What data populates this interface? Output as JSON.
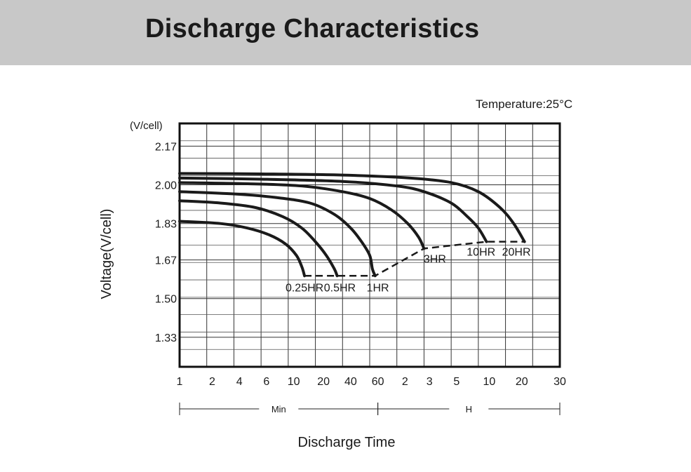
{
  "header": {
    "title": "Discharge Characteristics"
  },
  "chart_data": {
    "type": "line",
    "title": "Discharge Characteristics",
    "temperature_label": "Temperature:25°C",
    "ylabel": "Voltage(V/cell)",
    "y_unit_label": "(V/cell)",
    "xlabel": "Discharge Time",
    "ylim": [
      1.2,
      2.27
    ],
    "yticks": [
      2.17,
      2.0,
      1.83,
      1.67,
      1.5,
      1.33
    ],
    "ytick_labels": [
      "2.17",
      "2.00",
      "1.83",
      "1.67",
      "1.50",
      "1.33"
    ],
    "xlim": [
      0,
      14
    ],
    "xticks": [
      0,
      1,
      2,
      3,
      4,
      5,
      6,
      7,
      8,
      9,
      10,
      11,
      12,
      13,
      14
    ],
    "xtick_labels": [
      "1",
      "2",
      "4",
      "6",
      "10",
      "20",
      "40",
      "60",
      "2",
      "3",
      "5",
      "10",
      "20",
      "30"
    ],
    "xtick_positions": [
      0,
      1.2,
      2.2,
      3.2,
      4.2,
      5.3,
      6.3,
      7.3,
      8.3,
      9.2,
      10.2,
      11.4,
      12.6,
      14
    ],
    "x_ranges": [
      {
        "label": "Min",
        "from": 0,
        "to": 7.3
      },
      {
        "label": "H",
        "from": 7.3,
        "to": 14
      }
    ],
    "series": [
      {
        "name": "0.25HR",
        "points": [
          [
            0,
            1.84
          ],
          [
            1.5,
            1.83
          ],
          [
            2.5,
            1.81
          ],
          [
            3.3,
            1.78
          ],
          [
            3.9,
            1.74
          ],
          [
            4.3,
            1.69
          ],
          [
            4.5,
            1.64
          ],
          [
            4.6,
            1.6
          ]
        ]
      },
      {
        "name": "0.5HR",
        "points": [
          [
            0,
            1.93
          ],
          [
            1.5,
            1.92
          ],
          [
            2.8,
            1.9
          ],
          [
            3.8,
            1.86
          ],
          [
            4.5,
            1.81
          ],
          [
            5.0,
            1.75
          ],
          [
            5.4,
            1.69
          ],
          [
            5.7,
            1.63
          ],
          [
            5.8,
            1.6
          ]
        ]
      },
      {
        "name": "1HR",
        "points": [
          [
            0,
            1.97
          ],
          [
            2,
            1.96
          ],
          [
            3.5,
            1.945
          ],
          [
            4.8,
            1.92
          ],
          [
            5.7,
            1.87
          ],
          [
            6.3,
            1.81
          ],
          [
            6.7,
            1.75
          ],
          [
            7.0,
            1.69
          ],
          [
            7.1,
            1.63
          ],
          [
            7.2,
            1.6
          ]
        ]
      },
      {
        "name": "3HR",
        "points": [
          [
            0,
            2.01
          ],
          [
            2.5,
            2.005
          ],
          [
            4.5,
            1.995
          ],
          [
            6,
            1.97
          ],
          [
            7,
            1.94
          ],
          [
            7.8,
            1.89
          ],
          [
            8.4,
            1.83
          ],
          [
            8.8,
            1.77
          ],
          [
            9.0,
            1.72
          ]
        ]
      },
      {
        "name": "10HR",
        "points": [
          [
            0,
            2.03
          ],
          [
            3,
            2.025
          ],
          [
            6,
            2.015
          ],
          [
            8,
            1.995
          ],
          [
            9,
            1.97
          ],
          [
            10,
            1.92
          ],
          [
            10.6,
            1.86
          ],
          [
            11.0,
            1.81
          ],
          [
            11.3,
            1.75
          ]
        ]
      },
      {
        "name": "20HR",
        "points": [
          [
            0,
            2.05
          ],
          [
            3,
            2.048
          ],
          [
            6,
            2.043
          ],
          [
            8.5,
            2.03
          ],
          [
            10,
            2.01
          ],
          [
            11,
            1.97
          ],
          [
            11.8,
            1.9
          ],
          [
            12.3,
            1.83
          ],
          [
            12.7,
            1.75
          ]
        ]
      }
    ],
    "cutoff_curve": {
      "style": "dashed",
      "points": [
        [
          4.6,
          1.6
        ],
        [
          5.8,
          1.6
        ],
        [
          7.2,
          1.6
        ],
        [
          9.0,
          1.72
        ],
        [
          11.3,
          1.75
        ],
        [
          12.7,
          1.75
        ]
      ]
    },
    "curve_labels": [
      "0.25HR",
      "0.5HR",
      "1HR",
      "3HR",
      "10HR",
      "20HR"
    ],
    "grid": true
  }
}
